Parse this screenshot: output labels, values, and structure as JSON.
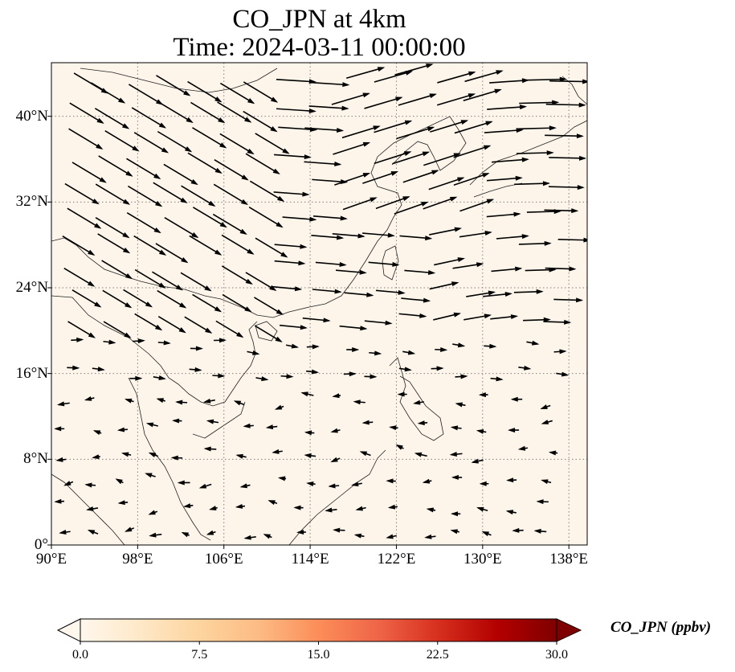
{
  "title_line1": "CO_JPN at 4km",
  "title_line2": "Time: 2024-03-11 00:00:00",
  "map": {
    "lon_range": [
      90,
      139.7
    ],
    "lat_range": [
      0,
      45
    ],
    "background_color": "#fdf5ea",
    "gridlines": "dotted",
    "lat_ticks": [
      {
        "value": 40,
        "label": "40°N"
      },
      {
        "value": 32,
        "label": "32°N"
      },
      {
        "value": 24,
        "label": "24°N"
      },
      {
        "value": 16,
        "label": "16°N"
      },
      {
        "value": 8,
        "label": "8°N"
      },
      {
        "value": 0,
        "label": "0°"
      }
    ],
    "lon_ticks": [
      {
        "value": 90,
        "label": "90°E"
      },
      {
        "value": 98,
        "label": "98°E"
      },
      {
        "value": 106,
        "label": "106°E"
      },
      {
        "value": 114,
        "label": "114°E"
      },
      {
        "value": 122,
        "label": "122°E"
      },
      {
        "value": 130,
        "label": "130°E"
      },
      {
        "value": 138,
        "label": "138°E"
      }
    ],
    "wind_field": "westerly in north, weak easterly in south",
    "wind_arrow_color": "#000000"
  },
  "colorbar": {
    "label": "CO_JPN (ppbv)",
    "colormap": "OrRd",
    "range": [
      0,
      30
    ],
    "extend": "both",
    "colors": [
      "#fff7ec",
      "#fee8c8",
      "#fdd49e",
      "#fdbb84",
      "#fc8d59",
      "#ef6548",
      "#d7301f",
      "#b30000",
      "#7f0000"
    ],
    "ticks": [
      {
        "value": 0,
        "label": "0.0"
      },
      {
        "value": 7.5,
        "label": "7.5"
      },
      {
        "value": 15,
        "label": "15.0"
      },
      {
        "value": 22.5,
        "label": "22.5"
      },
      {
        "value": 30,
        "label": "30.0"
      }
    ]
  }
}
